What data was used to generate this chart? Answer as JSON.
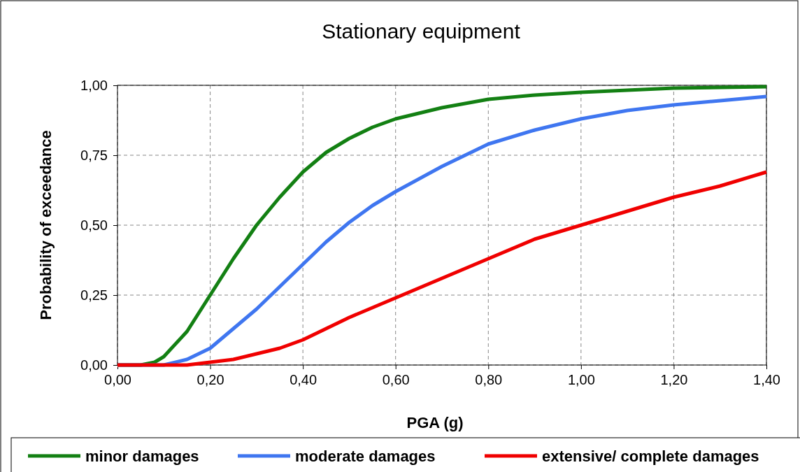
{
  "chart_data": {
    "type": "line",
    "title": "Stationary equipment",
    "xlabel": "PGA (g)",
    "ylabel": "Probability of exceedance",
    "xlim": [
      0,
      1.4
    ],
    "ylim": [
      0,
      1
    ],
    "xticks": [
      {
        "value": 0,
        "label": "0,00"
      },
      {
        "value": 0.2,
        "label": "0,20"
      },
      {
        "value": 0.4,
        "label": "0,40"
      },
      {
        "value": 0.6,
        "label": "0,60"
      },
      {
        "value": 0.8,
        "label": "0,80"
      },
      {
        "value": 1,
        "label": "1,00"
      },
      {
        "value": 1.2,
        "label": "1,20"
      },
      {
        "value": 1.4,
        "label": "1,40"
      }
    ],
    "yticks": [
      {
        "value": 0,
        "label": "0,00"
      },
      {
        "value": 0.25,
        "label": "0,25"
      },
      {
        "value": 0.5,
        "label": "0,50"
      },
      {
        "value": 0.75,
        "label": "0,75"
      },
      {
        "value": 1,
        "label": "1,00"
      }
    ],
    "grid": true,
    "legend": "bottom",
    "line_style": "solid",
    "marker": "none",
    "series": [
      {
        "name": "minor damages",
        "color": "#138013",
        "x": [
          0,
          0.05,
          0.08,
          0.1,
          0.15,
          0.2,
          0.25,
          0.3,
          0.35,
          0.4,
          0.45,
          0.5,
          0.55,
          0.6,
          0.7,
          0.8,
          0.9,
          1,
          1.2,
          1.4
        ],
        "values": [
          0,
          0,
          0.01,
          0.03,
          0.12,
          0.25,
          0.38,
          0.5,
          0.6,
          0.69,
          0.76,
          0.81,
          0.85,
          0.88,
          0.92,
          0.95,
          0.965,
          0.975,
          0.99,
          0.995
        ]
      },
      {
        "name": "moderate damages",
        "color": "#3f76f0",
        "x": [
          0,
          0.1,
          0.15,
          0.2,
          0.25,
          0.3,
          0.35,
          0.4,
          0.45,
          0.5,
          0.55,
          0.6,
          0.7,
          0.8,
          0.9,
          1,
          1.1,
          1.2,
          1.3,
          1.4
        ],
        "values": [
          0,
          0,
          0.02,
          0.06,
          0.13,
          0.2,
          0.28,
          0.36,
          0.44,
          0.51,
          0.57,
          0.62,
          0.71,
          0.79,
          0.84,
          0.88,
          0.91,
          0.93,
          0.945,
          0.96
        ]
      },
      {
        "name": "extensive/ complete damages",
        "color": "#f00000",
        "x": [
          0,
          0.15,
          0.2,
          0.25,
          0.3,
          0.35,
          0.4,
          0.45,
          0.5,
          0.6,
          0.7,
          0.8,
          0.9,
          1,
          1.1,
          1.2,
          1.3,
          1.4
        ],
        "values": [
          0,
          0,
          0.01,
          0.02,
          0.04,
          0.06,
          0.09,
          0.13,
          0.17,
          0.24,
          0.31,
          0.38,
          0.45,
          0.5,
          0.55,
          0.6,
          0.64,
          0.69
        ]
      }
    ]
  }
}
